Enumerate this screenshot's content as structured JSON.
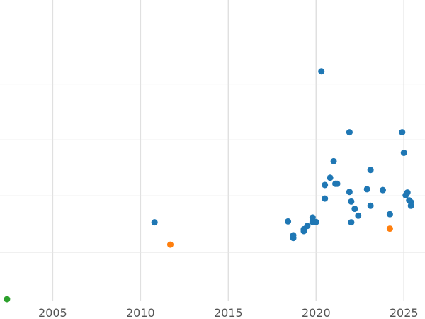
{
  "chart_data": {
    "type": "scatter",
    "title": "",
    "xlabel": "",
    "ylabel": "",
    "xlim": [
      2002.0,
      2026.2
    ],
    "ylim": [
      0,
      100
    ],
    "x_ticks": [
      2005,
      2010,
      2015,
      2020,
      2025
    ],
    "x_tick_labels": [
      "2005",
      "2010",
      "2015",
      "2020",
      "2025"
    ],
    "y_gridlines": [
      16.2,
      35.0,
      53.6,
      72.1,
      90.7
    ],
    "grid": true,
    "legend": "none",
    "series": [
      {
        "color": "#1f77b4",
        "points": [
          {
            "x": 2010.8,
            "y": 26.2
          },
          {
            "x": 2018.4,
            "y": 26.5
          },
          {
            "x": 2018.7,
            "y": 21.0
          },
          {
            "x": 2018.7,
            "y": 21.9
          },
          {
            "x": 2019.3,
            "y": 23.3
          },
          {
            "x": 2019.3,
            "y": 23.9
          },
          {
            "x": 2019.5,
            "y": 25.0
          },
          {
            "x": 2019.8,
            "y": 26.3
          },
          {
            "x": 2019.8,
            "y": 27.8
          },
          {
            "x": 2020.0,
            "y": 26.3
          },
          {
            "x": 2020.3,
            "y": 76.3
          },
          {
            "x": 2020.5,
            "y": 34.1
          },
          {
            "x": 2020.5,
            "y": 38.6
          },
          {
            "x": 2020.8,
            "y": 41.0
          },
          {
            "x": 2021.0,
            "y": 46.5
          },
          {
            "x": 2021.1,
            "y": 39.0
          },
          {
            "x": 2021.2,
            "y": 39.0
          },
          {
            "x": 2021.9,
            "y": 36.3
          },
          {
            "x": 2021.9,
            "y": 56.1
          },
          {
            "x": 2022.0,
            "y": 26.2
          },
          {
            "x": 2022.0,
            "y": 33.1
          },
          {
            "x": 2022.2,
            "y": 30.7
          },
          {
            "x": 2022.4,
            "y": 28.4
          },
          {
            "x": 2022.9,
            "y": 37.2
          },
          {
            "x": 2023.1,
            "y": 43.6
          },
          {
            "x": 2023.1,
            "y": 31.7
          },
          {
            "x": 2023.8,
            "y": 36.9
          },
          {
            "x": 2024.2,
            "y": 28.9
          },
          {
            "x": 2024.9,
            "y": 56.1
          },
          {
            "x": 2025.0,
            "y": 49.3
          },
          {
            "x": 2025.1,
            "y": 35.2
          },
          {
            "x": 2025.2,
            "y": 36.1
          },
          {
            "x": 2025.3,
            "y": 33.5
          },
          {
            "x": 2025.4,
            "y": 32.9
          },
          {
            "x": 2025.4,
            "y": 31.7
          }
        ]
      },
      {
        "color": "#ff7f0e",
        "points": [
          {
            "x": 2011.7,
            "y": 18.8
          },
          {
            "x": 2024.2,
            "y": 24.1
          }
        ]
      },
      {
        "color": "#2ca02c",
        "points": [
          {
            "x": 2002.4,
            "y": 0.7
          }
        ]
      }
    ]
  }
}
